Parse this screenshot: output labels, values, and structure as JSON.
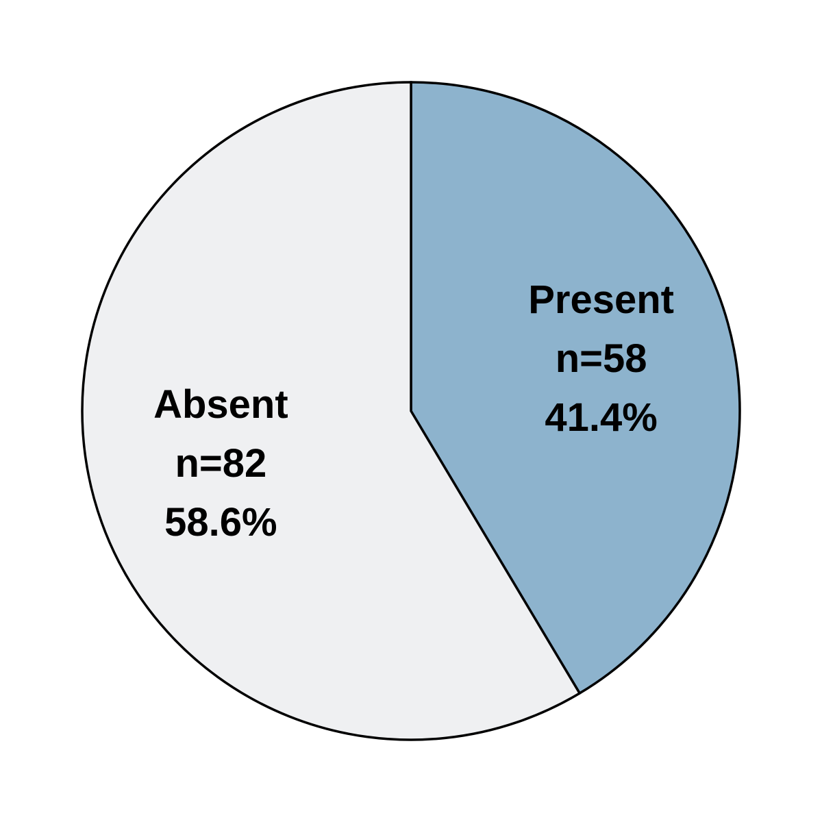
{
  "chart_data": {
    "type": "pie",
    "title": "",
    "start_angle_deg": 90,
    "direction": "clockwise",
    "slices": [
      {
        "label": "Present",
        "count": 58,
        "count_text": "n=58",
        "percent": 41.4,
        "percent_text": "41.4%",
        "color": "#8db3cd"
      },
      {
        "label": "Absent",
        "count": 82,
        "count_text": "n=82",
        "percent": 58.6,
        "percent_text": "58.6%",
        "color": "#eff0f2"
      }
    ],
    "edge_color": "#000000",
    "legend": "none"
  }
}
